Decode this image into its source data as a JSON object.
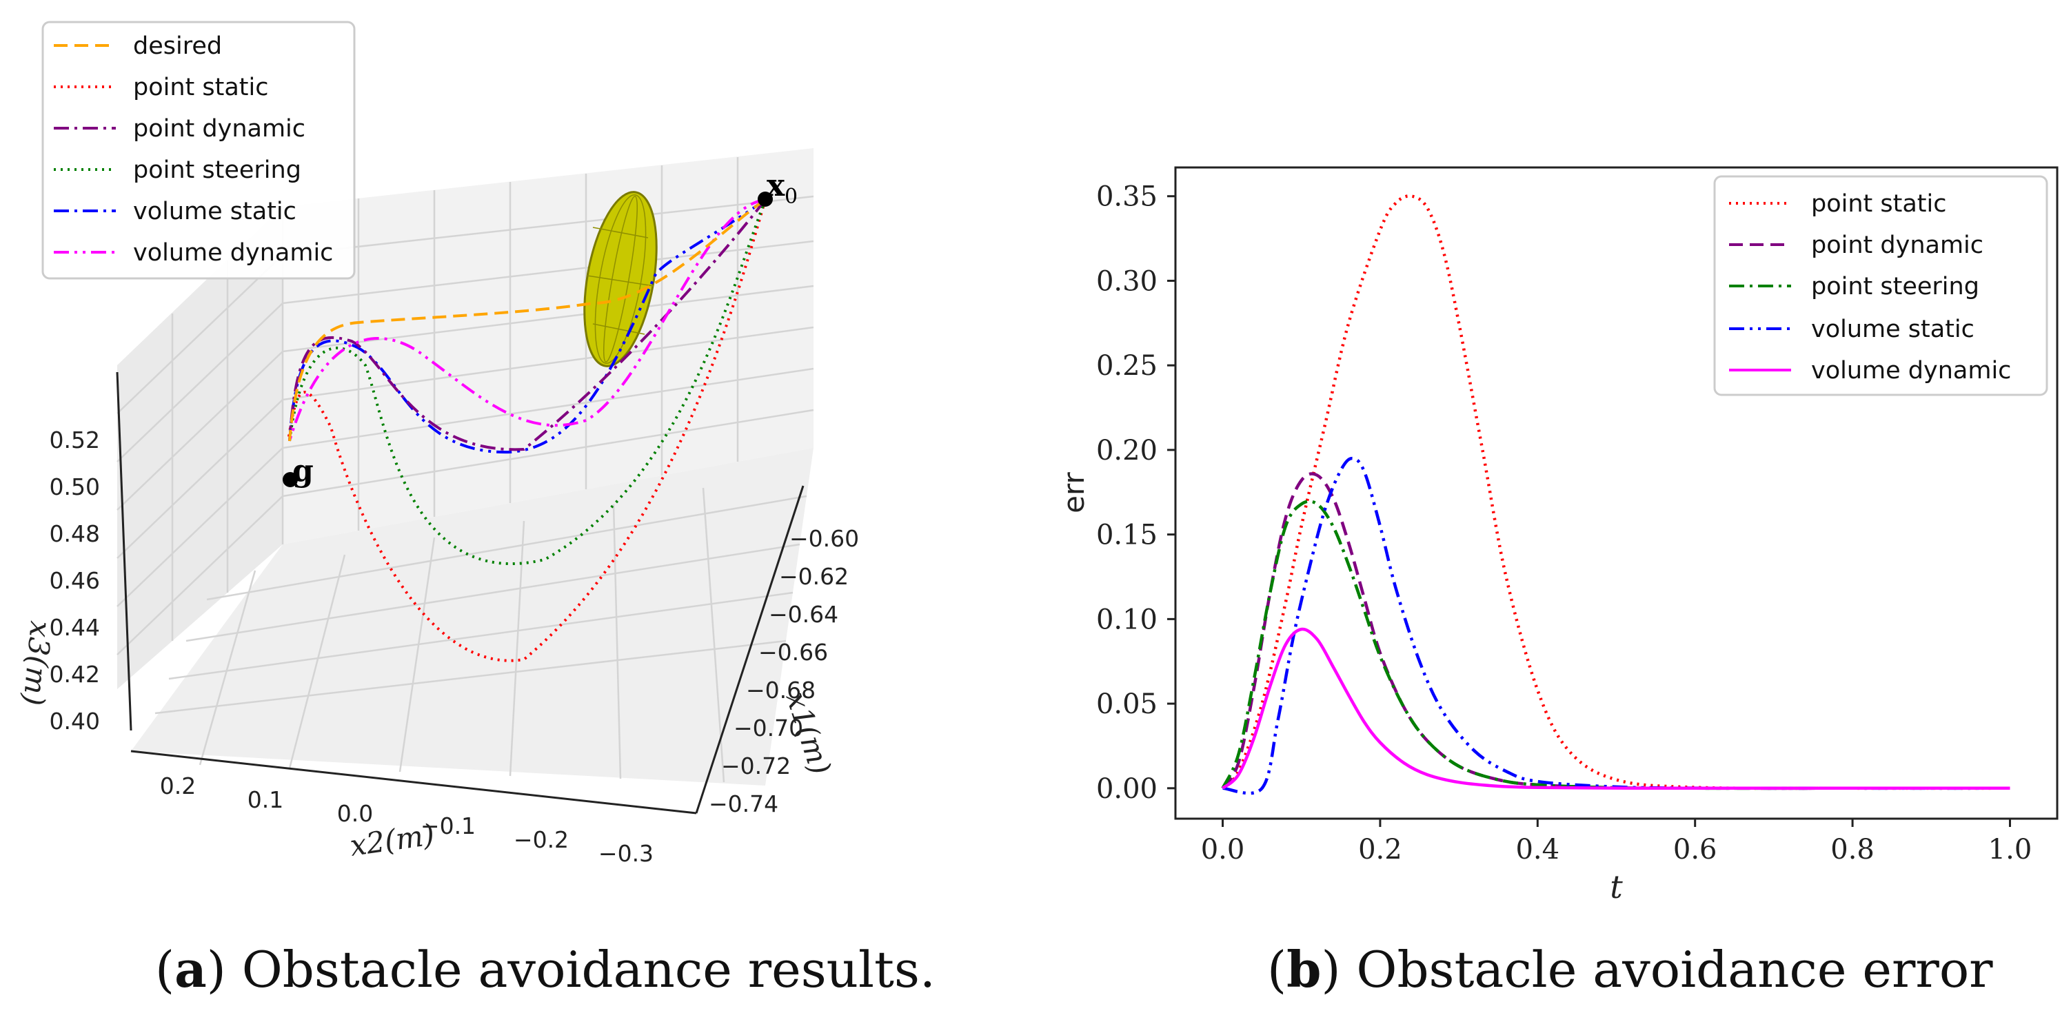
{
  "figure": {
    "caption_a": {
      "tag": "a",
      "text": ") Obstacle avoidance results."
    },
    "caption_b": {
      "tag": "b",
      "text": ") Obstacle avoidance error"
    }
  },
  "chart_data": [
    {
      "type": "line3d",
      "title": "",
      "xlabel": "x2(m)",
      "ylabel": "x1(m)",
      "zlabel": "x3(m)",
      "x2_ticks": [
        "0.2",
        "0.1",
        "0.0",
        "−0.1",
        "−0.2",
        "−0.3"
      ],
      "x1_ticks": [
        "−0.60",
        "−0.62",
        "−0.64",
        "−0.66",
        "−0.68",
        "−0.70",
        "−0.72",
        "−0.74"
      ],
      "x3_ticks": [
        "0.40",
        "0.42",
        "0.44",
        "0.46",
        "0.48",
        "0.50",
        "0.52"
      ],
      "start_label": "x",
      "start_sub": "0",
      "goal_label": "g",
      "obstacle": "ellipsoid",
      "legend": [
        "desired",
        "point static",
        "point dynamic",
        "point steering",
        "volume static",
        "volume dynamic"
      ],
      "colors": {
        "desired": "#ffa500",
        "point static": "#ff0000",
        "point dynamic": "#800080",
        "point steering": "#008000",
        "volume static": "#0000ff",
        "volume dynamic": "#ff00ff",
        "obstacle": "#c8c800"
      }
    },
    {
      "type": "line",
      "title": "",
      "xlabel": "t",
      "ylabel": "err",
      "xlim": [
        -0.06,
        1.06
      ],
      "ylim": [
        -0.018,
        0.367
      ],
      "xticks": [
        0.0,
        0.2,
        0.4,
        0.6,
        0.8,
        1.0
      ],
      "xtick_labels": [
        "0.0",
        "0.2",
        "0.4",
        "0.6",
        "0.8",
        "1.0"
      ],
      "yticks": [
        0.0,
        0.05,
        0.1,
        0.15,
        0.2,
        0.25,
        0.3,
        0.35
      ],
      "ytick_labels": [
        "0.00",
        "0.05",
        "0.10",
        "0.15",
        "0.20",
        "0.25",
        "0.30",
        "0.35"
      ],
      "legend_position": "top-right",
      "series": [
        {
          "name": "point static",
          "color": "#ff0000",
          "style": "dotted",
          "x": [
            0,
            0.02,
            0.05,
            0.08,
            0.1,
            0.13,
            0.16,
            0.2,
            0.22,
            0.24,
            0.26,
            0.28,
            0.3,
            0.33,
            0.36,
            0.4,
            0.44,
            0.5,
            0.6,
            0.8,
            1.0
          ],
          "y": [
            0,
            0.01,
            0.05,
            0.11,
            0.155,
            0.215,
            0.275,
            0.33,
            0.346,
            0.35,
            0.343,
            0.318,
            0.275,
            0.2,
            0.125,
            0.058,
            0.022,
            0.005,
            0.0005,
            0,
            0
          ]
        },
        {
          "name": "point dynamic",
          "color": "#800080",
          "style": "dashed",
          "x": [
            0,
            0.02,
            0.04,
            0.06,
            0.08,
            0.1,
            0.12,
            0.14,
            0.16,
            0.18,
            0.2,
            0.23,
            0.26,
            0.3,
            0.35,
            0.4,
            0.5,
            0.6,
            0.8,
            1.0
          ],
          "y": [
            0,
            0.015,
            0.06,
            0.115,
            0.16,
            0.182,
            0.185,
            0.172,
            0.145,
            0.112,
            0.08,
            0.048,
            0.028,
            0.013,
            0.005,
            0.002,
            0.0003,
            0,
            0,
            0
          ]
        },
        {
          "name": "point steering",
          "color": "#008000",
          "style": "dashdot",
          "x": [
            0,
            0.02,
            0.04,
            0.06,
            0.08,
            0.1,
            0.12,
            0.14,
            0.16,
            0.18,
            0.2,
            0.23,
            0.26,
            0.3,
            0.35,
            0.4,
            0.5,
            0.6,
            0.8,
            1.0
          ],
          "y": [
            0,
            0.02,
            0.065,
            0.115,
            0.155,
            0.168,
            0.168,
            0.155,
            0.132,
            0.105,
            0.078,
            0.048,
            0.028,
            0.013,
            0.005,
            0.002,
            0.0003,
            0,
            0,
            0
          ]
        },
        {
          "name": "volume static",
          "color": "#0000ff",
          "style": "dashdotdot",
          "x": [
            0,
            0.05,
            0.07,
            0.09,
            0.11,
            0.13,
            0.15,
            0.165,
            0.18,
            0.2,
            0.22,
            0.25,
            0.28,
            0.32,
            0.36,
            0.4,
            0.5,
            0.6,
            0.8,
            1.0
          ],
          "y": [
            0,
            0.0,
            0.04,
            0.09,
            0.13,
            0.165,
            0.188,
            0.195,
            0.187,
            0.155,
            0.118,
            0.075,
            0.045,
            0.022,
            0.01,
            0.004,
            0.0008,
            0.0001,
            0,
            0
          ]
        },
        {
          "name": "volume dynamic",
          "color": "#ff00ff",
          "style": "solid",
          "x": [
            0,
            0.02,
            0.04,
            0.06,
            0.08,
            0.1,
            0.12,
            0.14,
            0.16,
            0.18,
            0.2,
            0.23,
            0.26,
            0.3,
            0.35,
            0.4,
            0.5,
            0.6,
            0.8,
            1.0
          ],
          "y": [
            0,
            0.008,
            0.03,
            0.06,
            0.085,
            0.094,
            0.088,
            0.072,
            0.055,
            0.039,
            0.027,
            0.015,
            0.008,
            0.0035,
            0.0012,
            0.0004,
            0.0001,
            0,
            0,
            0
          ]
        }
      ]
    }
  ]
}
